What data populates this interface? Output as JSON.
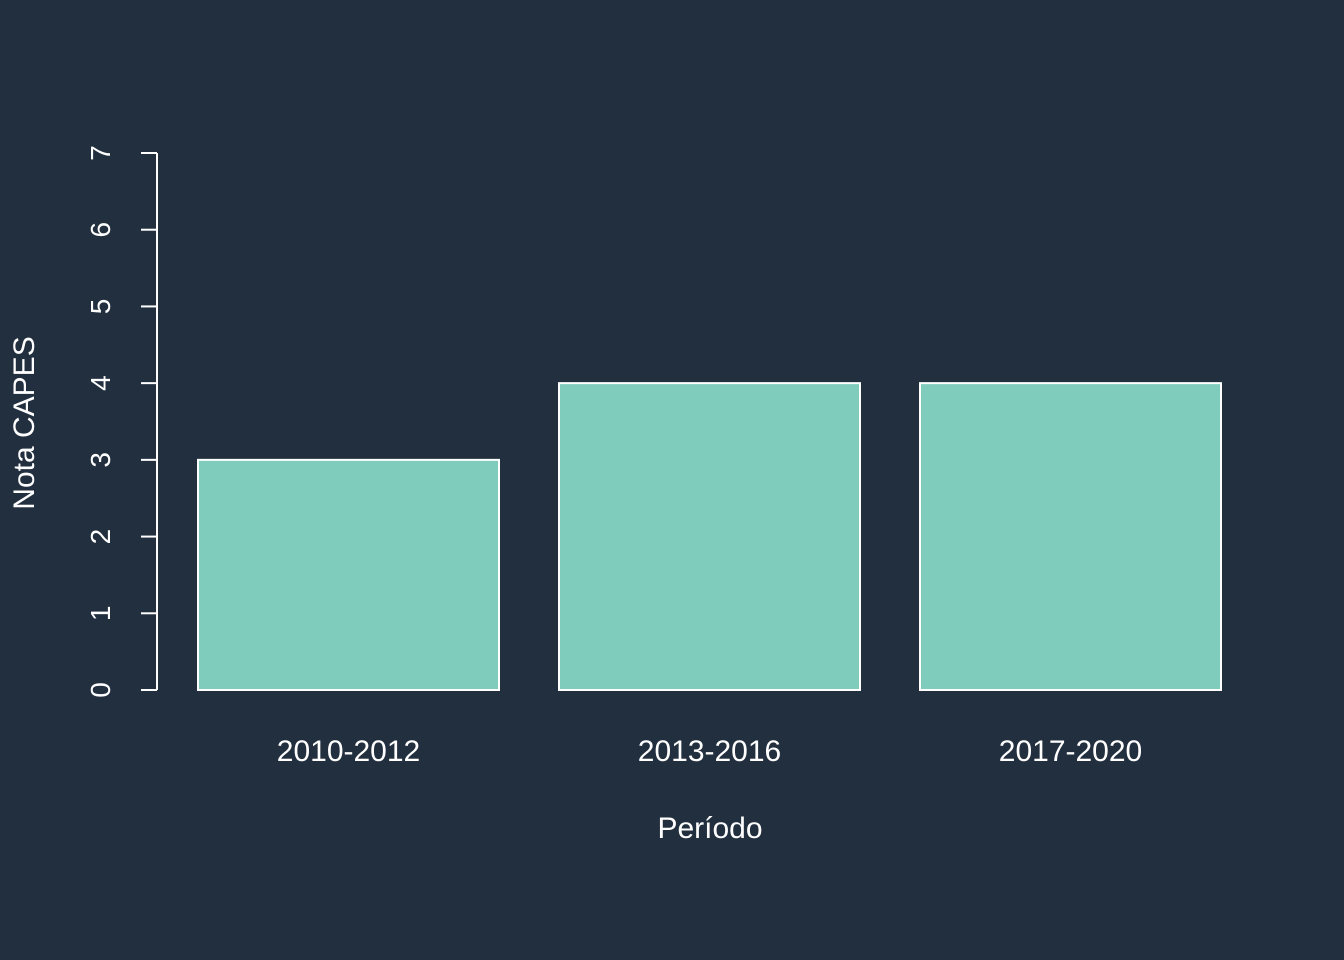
{
  "colors": {
    "background": "#222f3f",
    "bar_fill": "#7fcbbc",
    "bar_stroke": "#ffffff",
    "axis": "#ffffff",
    "text": "#ffffff"
  },
  "chart_data": {
    "type": "bar",
    "categories": [
      "2010-2012",
      "2013-2016",
      "2017-2020"
    ],
    "values": [
      3,
      4,
      4
    ],
    "title": "",
    "xlabel": "Período",
    "ylabel": "Nota CAPES",
    "ylim": [
      0,
      7
    ],
    "yticks": [
      "0",
      "1",
      "2",
      "3",
      "4",
      "5",
      "6",
      "7"
    ],
    "grid": false,
    "legend": "none"
  }
}
